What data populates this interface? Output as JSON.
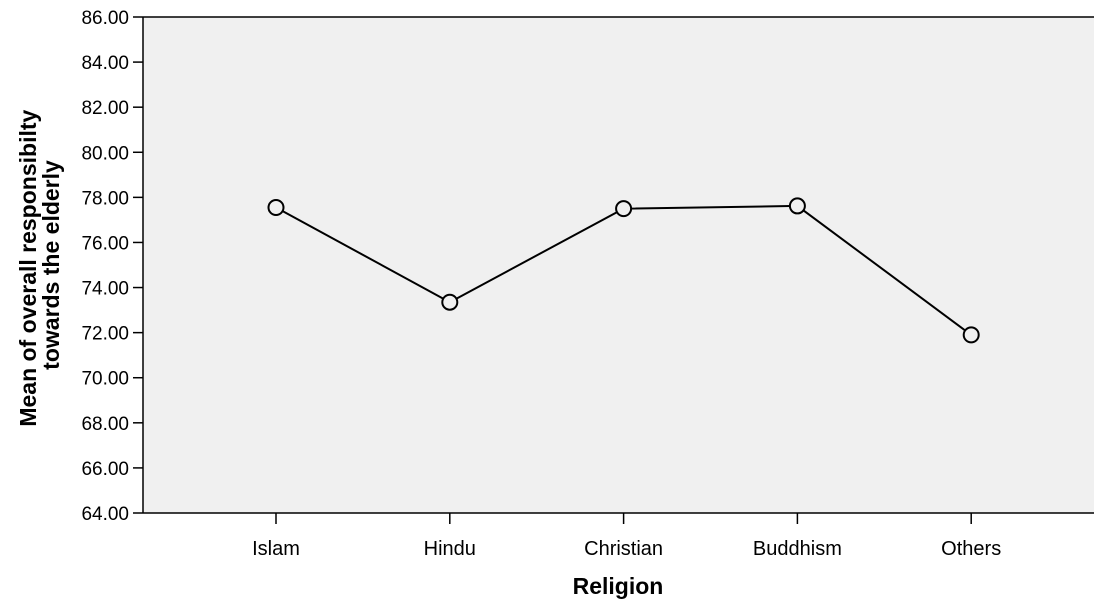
{
  "chart_data": {
    "type": "line",
    "title": "",
    "xlabel": "Religion",
    "ylabel_lines": [
      "Mean of overall responsibilty",
      "towards  the elderly"
    ],
    "categories": [
      "Islam",
      "Hindu",
      "Christian",
      "Buddhism",
      "Others"
    ],
    "series": [
      {
        "values": [
          77.55,
          73.35,
          77.5,
          77.62,
          71.9
        ]
      }
    ],
    "ylim": [
      64,
      86
    ],
    "yticks": [
      "64.00",
      "66.00",
      "68.00",
      "70.00",
      "72.00",
      "74.00",
      "76.00",
      "78.00",
      "80.00",
      "82.00",
      "84.00",
      "86.00"
    ],
    "grid": false,
    "legend": "none",
    "colors": {
      "plot_background": "#f0f0f0",
      "line": "#000000",
      "marker_fill": "#f0f0f0"
    }
  }
}
